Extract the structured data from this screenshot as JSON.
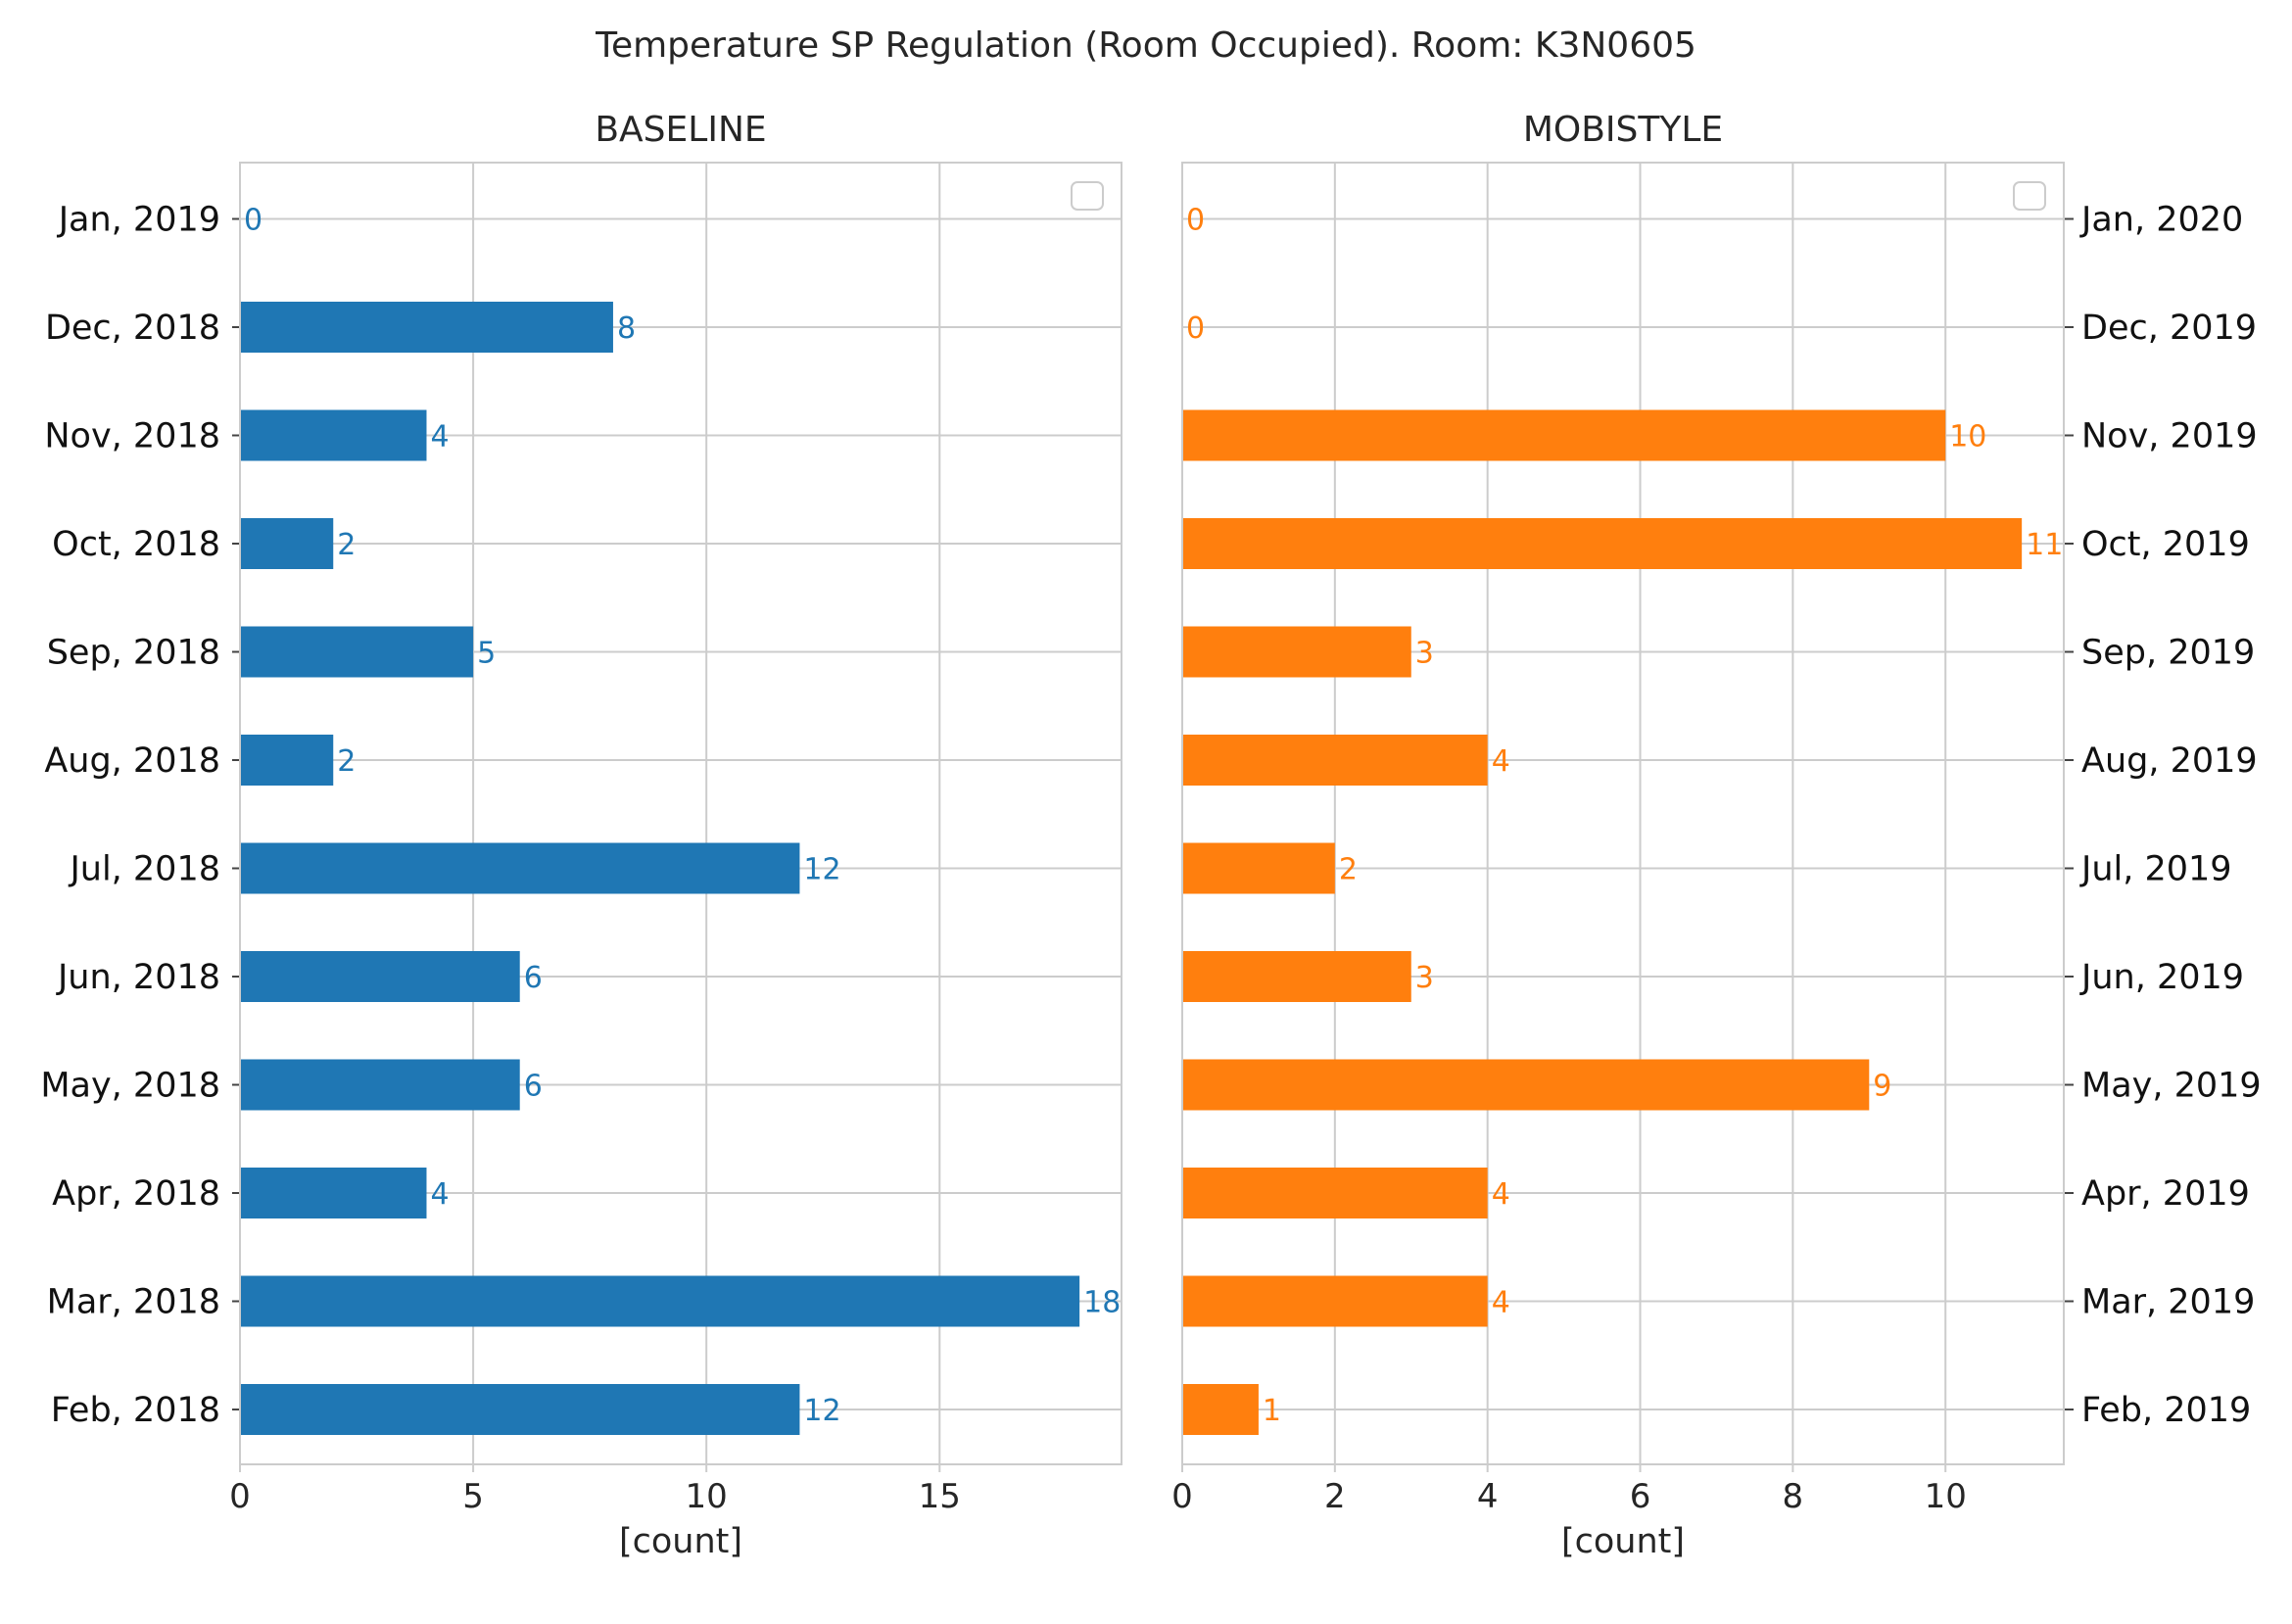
{
  "chart_data": {
    "type": "bar",
    "orientation": "horizontal",
    "title": "Temperature SP Regulation (Room Occupied). Room: K3N0605",
    "panels": [
      {
        "name": "baseline",
        "title": "BASELINE",
        "color": "#1f77b4",
        "categories": [
          "Feb, 2018",
          "Mar, 2018",
          "Apr, 2018",
          "May, 2018",
          "Jun, 2018",
          "Jul, 2018",
          "Aug, 2018",
          "Sep, 2018",
          "Oct, 2018",
          "Nov, 2018",
          "Dec, 2018",
          "Jan, 2019"
        ],
        "values": [
          12,
          18,
          4,
          6,
          6,
          12,
          2,
          5,
          2,
          4,
          8,
          0
        ],
        "xlim": [
          0,
          18.9
        ],
        "xticks": [
          0,
          5,
          10,
          15
        ],
        "xlabel": "[count]",
        "ytick_side": "left",
        "grid": true,
        "legend": "top-right (empty)"
      },
      {
        "name": "mobistyle",
        "title": "MOBISTYLE",
        "color": "#ff7f0e",
        "categories": [
          "Feb, 2019",
          "Mar, 2019",
          "Apr, 2019",
          "May, 2019",
          "Jun, 2019",
          "Jul, 2019",
          "Aug, 2019",
          "Sep, 2019",
          "Oct, 2019",
          "Nov, 2019",
          "Dec, 2019",
          "Jan, 2020"
        ],
        "values": [
          1,
          4,
          4,
          9,
          3,
          2,
          4,
          3,
          11,
          10,
          0,
          0
        ],
        "xlim": [
          0,
          11.55
        ],
        "xticks": [
          0,
          2,
          4,
          6,
          8,
          10
        ],
        "xlabel": "[count]",
        "ytick_side": "right",
        "grid": true,
        "legend": "top-right (empty)"
      }
    ]
  }
}
